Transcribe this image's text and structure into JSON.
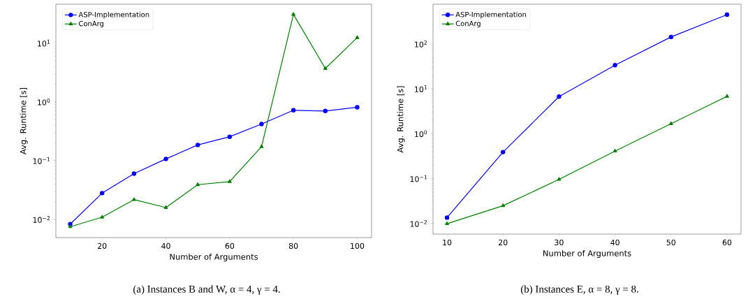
{
  "chart_data": [
    {
      "type": "line",
      "xlabel": "Number of Arguments",
      "ylabel": "Avg. Runtime [s]",
      "log": "y",
      "legend": "top left",
      "x": [
        10,
        20,
        30,
        40,
        50,
        60,
        70,
        80,
        90,
        100
      ],
      "xlim": [
        5.5,
        104.5
      ],
      "xticks": [
        20,
        40,
        60,
        80,
        100
      ],
      "ylim": [
        0.0049,
        46
      ],
      "yticks": [
        {
          "value": 0.01,
          "label": "10$^{−2}$"
        },
        {
          "value": 0.1,
          "label": "10$^{−1}$"
        },
        {
          "value": 1,
          "label": "10$^{0}$"
        },
        {
          "value": 10,
          "label": "10$^{1}$"
        }
      ],
      "series": [
        {
          "name": "ASP-Implementation",
          "color": "#0000ff",
          "marker": "circle",
          "values": [
            0.0083,
            0.028,
            0.06,
            0.107,
            0.185,
            0.255,
            0.42,
            0.72,
            0.7,
            0.81
          ]
        },
        {
          "name": "ConArg",
          "color": "#008000",
          "marker": "triangle",
          "values": [
            0.0075,
            0.0109,
            0.0217,
            0.0159,
            0.039,
            0.044,
            0.173,
            30.8,
            3.7,
            12.4
          ]
        }
      ],
      "annotations": [
        "(a) Instances B and W, α = 4, γ = 4."
      ]
    },
    {
      "type": "line",
      "xlabel": "Number of Arguments",
      "ylabel": "Avg. Runtime [s]",
      "log": "y",
      "legend": "top left",
      "x": [
        10,
        20,
        30,
        40,
        50,
        60
      ],
      "xlim": [
        7.5,
        62.5
      ],
      "xticks": [
        10,
        20,
        30,
        40,
        50,
        60
      ],
      "ylim": [
        0.0058,
        768
      ],
      "yticks": [
        {
          "value": 0.01,
          "label": "10$^{−2}$"
        },
        {
          "value": 0.1,
          "label": "10$^{−1}$"
        },
        {
          "value": 1,
          "label": "10$^{0}$"
        },
        {
          "value": 10,
          "label": "10$^{1}$"
        },
        {
          "value": 100,
          "label": "10$^{2}$"
        }
      ],
      "series": [
        {
          "name": "ASP-Implementation",
          "color": "#0000ff",
          "marker": "circle",
          "values": [
            0.0135,
            0.39,
            6.7,
            33.6,
            143,
            448
          ]
        },
        {
          "name": "ConArg",
          "color": "#008000",
          "marker": "triangle",
          "values": [
            0.0099,
            0.0249,
            0.096,
            0.41,
            1.67,
            6.8
          ]
        }
      ],
      "annotations": [
        "(b) Instances E, α = 8, γ = 8."
      ]
    }
  ]
}
